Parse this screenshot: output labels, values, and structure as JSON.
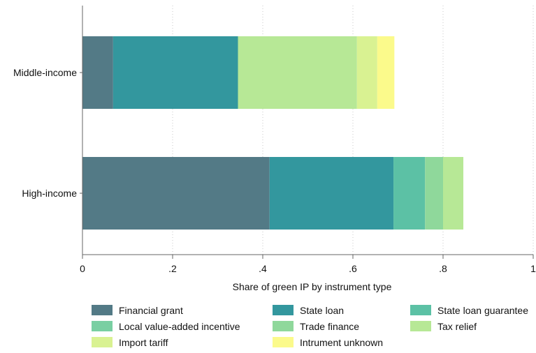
{
  "chart_data": {
    "type": "bar",
    "orientation": "horizontal",
    "stacked": true,
    "categories": [
      "Middle-income",
      "High-income"
    ],
    "series": [
      {
        "name": "Financial grant",
        "color": "#537a86",
        "values": [
          0.068,
          0.415
        ]
      },
      {
        "name": "State loan",
        "color": "#33979e",
        "values": [
          0.277,
          0.275
        ]
      },
      {
        "name": "State loan guarantee",
        "color": "#5cc1a5",
        "values": [
          0.0,
          0.07
        ]
      },
      {
        "name": "Local value-added incentive",
        "color": "#79cfa2",
        "values": [
          0.0,
          0.0
        ]
      },
      {
        "name": "Trade finance",
        "color": "#8fd89b",
        "values": [
          0.0,
          0.04
        ]
      },
      {
        "name": "Tax relief",
        "color": "#b7e896",
        "values": [
          0.264,
          0.045
        ]
      },
      {
        "name": "Import tariff",
        "color": "#d9f292",
        "values": [
          0.045,
          0.0
        ]
      },
      {
        "name": "Intrument unknown",
        "color": "#fbfa8b",
        "values": [
          0.038,
          0.0
        ]
      }
    ],
    "x_ticks": [
      0,
      0.2,
      0.4,
      0.6,
      0.8,
      1
    ],
    "x_tick_labels": [
      "0",
      ".2",
      ".4",
      ".6",
      ".8",
      "1"
    ],
    "xlim": [
      0,
      1
    ],
    "xlabel": "Share of green IP by instrument type",
    "ylabel": "",
    "title": "",
    "grid": "vertical dotted",
    "legend_position": "bottom",
    "legend_columns": 3
  }
}
